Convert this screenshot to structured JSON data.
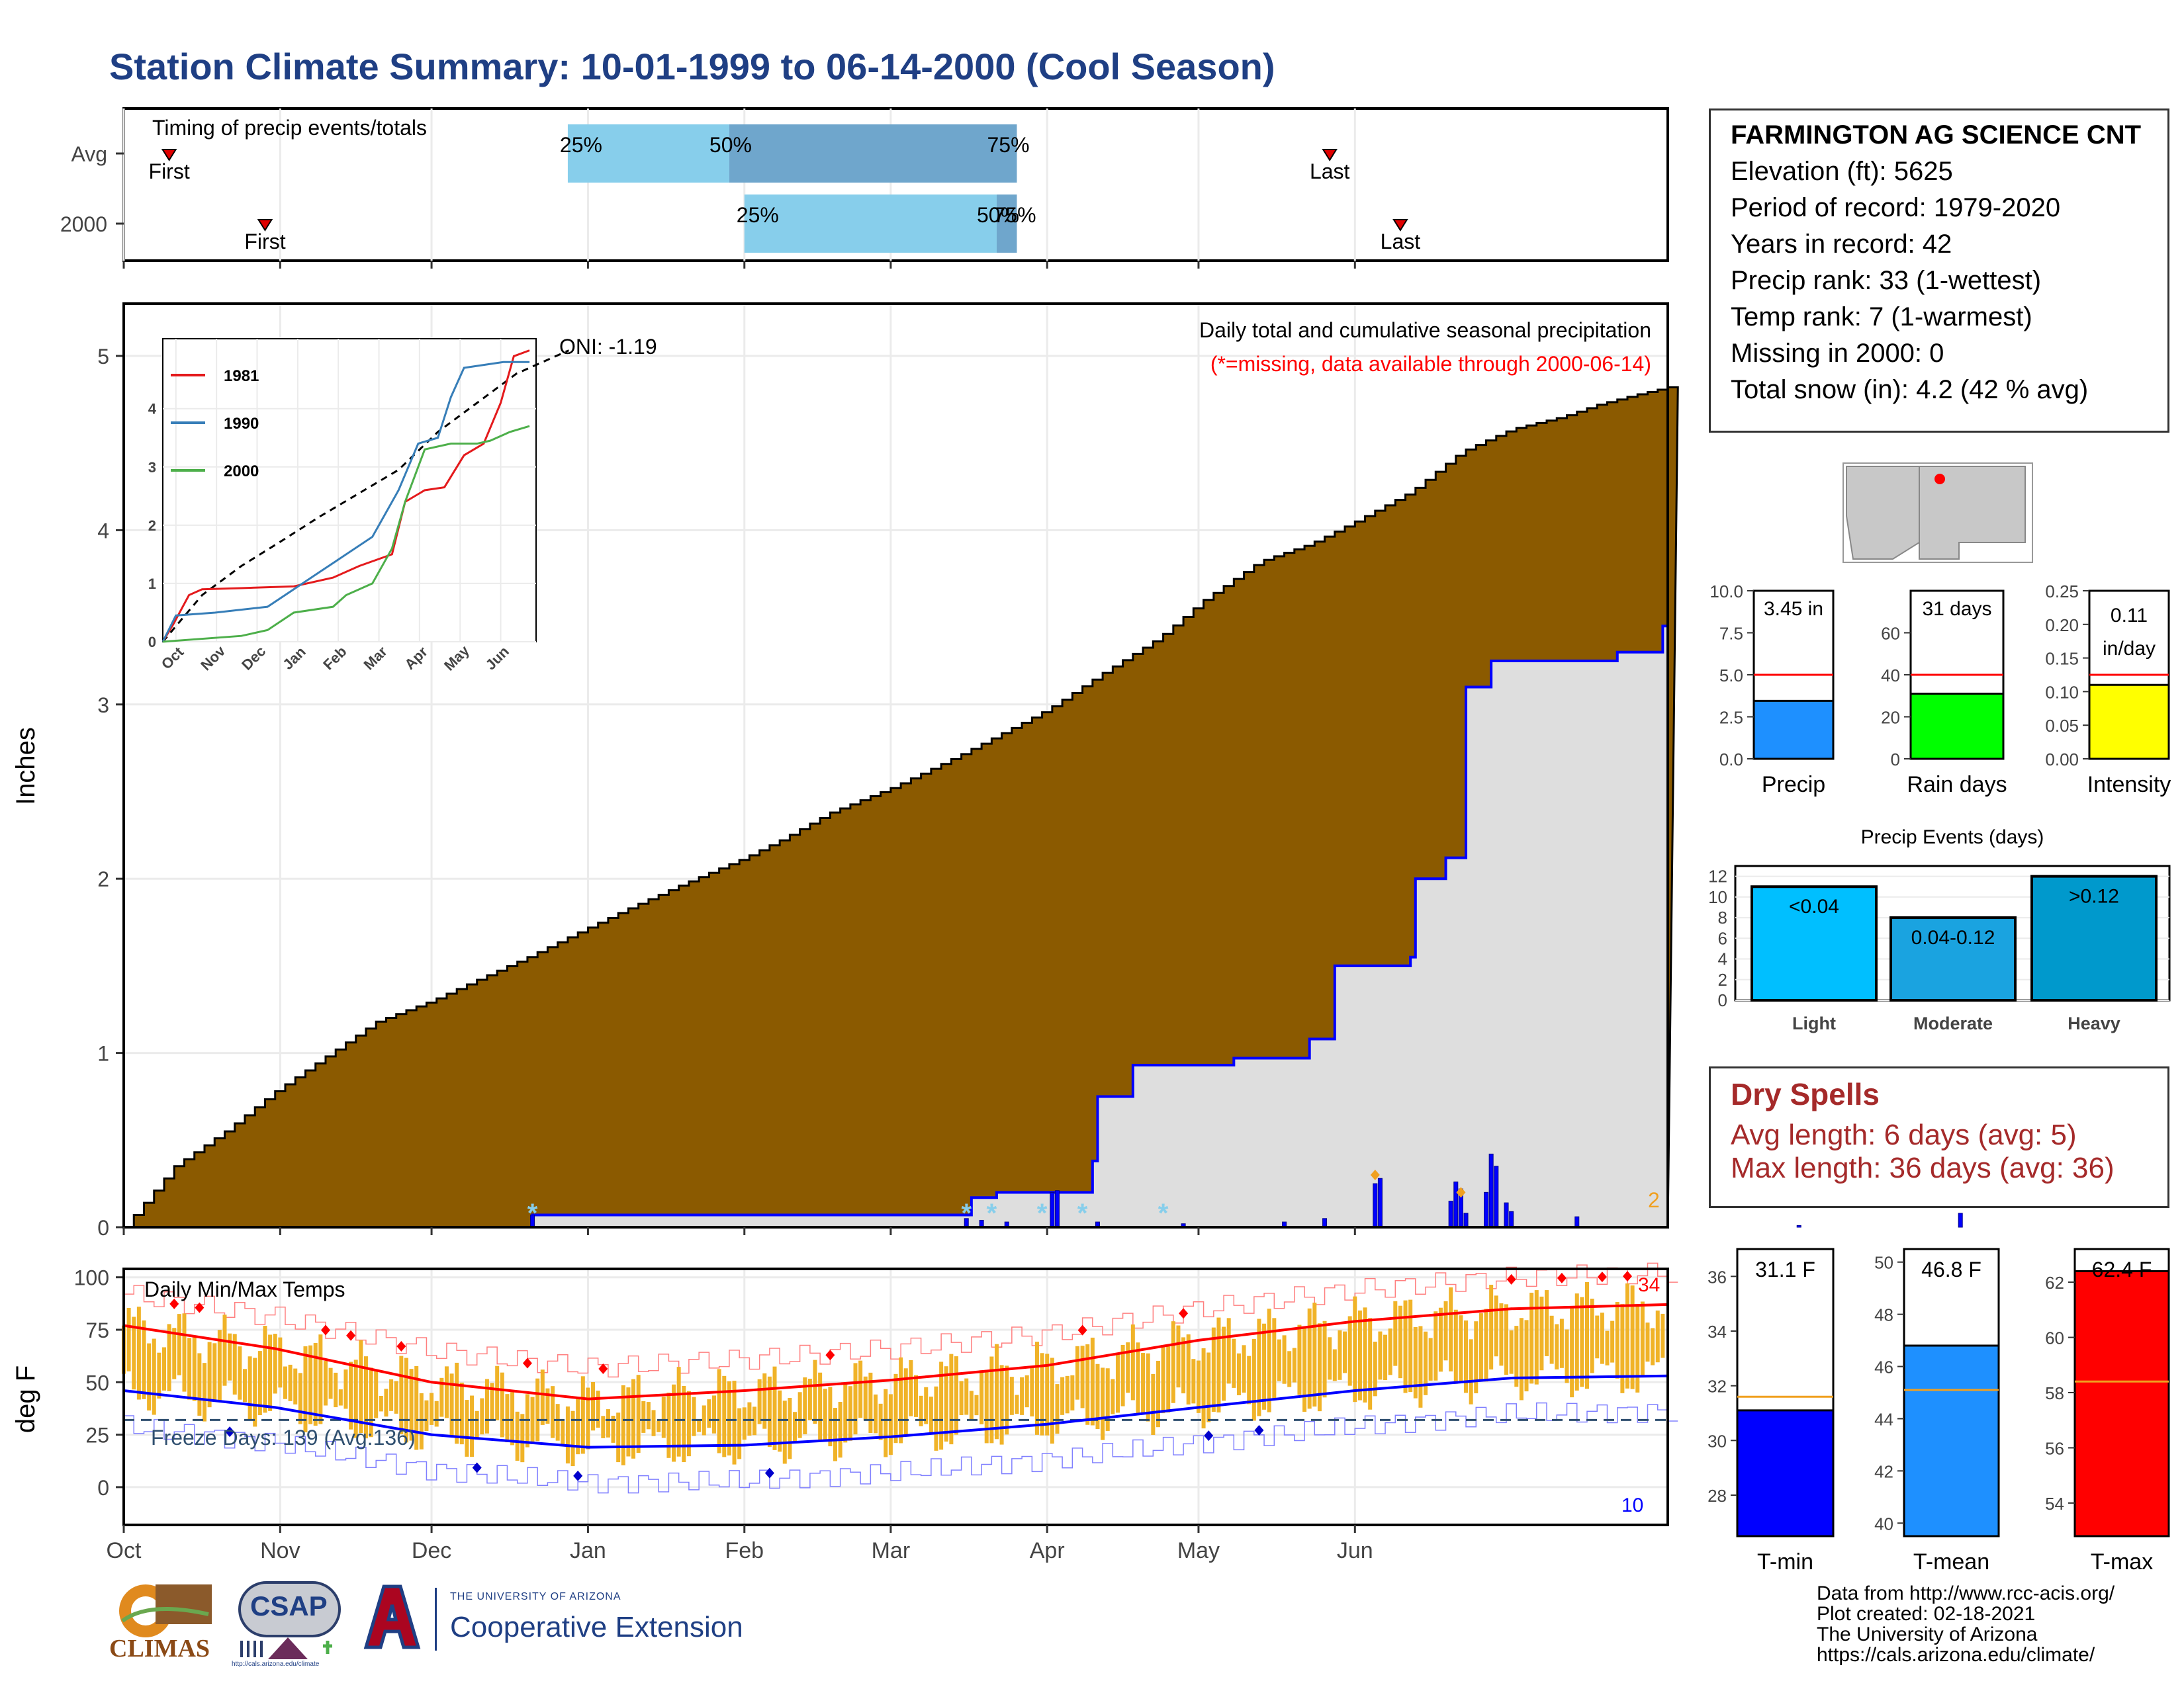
{
  "title": "Station Climate Summary: 10-01-1999 to 06-14-2000 (Cool Season)",
  "colors": {
    "title": "#1f3f84",
    "brown": "#8b5a00",
    "grey": "#dedede",
    "blue": "#0000ff",
    "light_blue": "#87ceeb",
    "mid_blue": "#6fa6cc",
    "orange": "#f0b328",
    "red": "#ff0000"
  },
  "station": {
    "name": "FARMINGTON AG SCIENCE CNT",
    "lines": [
      "Elevation (ft): 5625",
      "Period of record: 1979-2020",
      "Years in record: 42",
      "Precip rank: 33 (1-wettest)",
      "Temp rank: 7 (1-warmest)",
      "Missing in 2000: 0",
      "Total snow (in): 4.2 (42 % avg)"
    ]
  },
  "dry_spells": {
    "title": "Dry Spells",
    "avg_length": "Avg length: 6 days (avg: 5)",
    "max_length": "Max length: 36 days (avg: 36)"
  },
  "footer": {
    "lines": [
      "Data from http://www.rcc-acis.org/",
      "Plot created: 02-18-2021",
      "The University of Arizona",
      "https://cals.arizona.edu/climate/"
    ]
  },
  "logos": {
    "climas": "CLIMAS",
    "csap": "CSAP",
    "csap_url": "http://cals.arizona.edu/climate",
    "ua_small": "THE UNIVERSITY OF ARIZONA",
    "ua_big": "Cooperative Extension"
  },
  "chart_data": [
    {
      "type": "bar",
      "id": "timing",
      "title": "Timing of precip events/totals",
      "rows": [
        {
          "label": "Avg",
          "first": "Oct 10",
          "p25": "Dec 28",
          "p50": "Jan 29",
          "p75": "Mar 26",
          "last": "May 27"
        },
        {
          "label": "2000",
          "first": "Oct 29",
          "p25": "Feb 1",
          "p50": "Mar 22",
          "p75": "Mar 26",
          "last": "Jun 10"
        }
      ],
      "marker_labels": {
        "first": "First",
        "last": "Last",
        "p25": "25%",
        "p50": "50%",
        "p75": "75%"
      }
    },
    {
      "type": "area",
      "id": "precip",
      "title": "Daily total and cumulative seasonal precipitation",
      "subtitle": "(*=missing, data available through 2000-06-14)",
      "oni": "ONI: -1.19",
      "ylabel": "Inches",
      "ylim": [
        0,
        5.3
      ],
      "yticks": [
        0,
        1,
        2,
        3,
        4,
        5
      ],
      "x_months": [
        "Oct",
        "Nov",
        "Dec",
        "Jan",
        "Feb",
        "Mar",
        "Apr",
        "May",
        "Jun"
      ],
      "avg_cumulative": [
        [
          0,
          0
        ],
        [
          10,
          0.35
        ],
        [
          20,
          0.55
        ],
        [
          30,
          0.78
        ],
        [
          40,
          0.98
        ],
        [
          50,
          1.18
        ],
        [
          61,
          1.3
        ],
        [
          70,
          1.42
        ],
        [
          80,
          1.55
        ],
        [
          92,
          1.72
        ],
        [
          100,
          1.83
        ],
        [
          110,
          1.96
        ],
        [
          123,
          2.12
        ],
        [
          130,
          2.22
        ],
        [
          140,
          2.38
        ],
        [
          152,
          2.52
        ],
        [
          165,
          2.7
        ],
        [
          175,
          2.85
        ],
        [
          183,
          2.97
        ],
        [
          195,
          3.2
        ],
        [
          205,
          3.38
        ],
        [
          214,
          3.6
        ],
        [
          225,
          3.82
        ],
        [
          235,
          3.92
        ],
        [
          244,
          4.05
        ],
        [
          255,
          4.22
        ],
        [
          265,
          4.45
        ],
        [
          275,
          4.58
        ],
        [
          285,
          4.65
        ],
        [
          292,
          4.72
        ],
        [
          300,
          4.78
        ],
        [
          306,
          4.82
        ]
      ],
      "season_cumulative": [
        [
          0,
          0
        ],
        [
          80,
          0.0
        ],
        [
          81,
          0.07
        ],
        [
          167,
          0.07
        ],
        [
          168,
          0.17
        ],
        [
          173,
          0.2
        ],
        [
          192,
          0.38
        ],
        [
          193,
          0.75
        ],
        [
          200,
          0.93
        ],
        [
          220,
          0.97
        ],
        [
          235,
          1.08
        ],
        [
          240,
          1.5
        ],
        [
          255,
          1.55
        ],
        [
          256,
          2.0
        ],
        [
          262,
          2.12
        ],
        [
          266,
          3.1
        ],
        [
          271,
          3.25
        ],
        [
          296,
          3.3
        ],
        [
          305,
          3.45
        ],
        [
          306,
          3.45
        ]
      ],
      "daily_bars": [
        [
          81,
          0.07
        ],
        [
          167,
          0.05
        ],
        [
          170,
          0.04
        ],
        [
          175,
          0.03
        ],
        [
          184,
          0.2
        ],
        [
          185,
          0.21
        ],
        [
          193,
          0.03
        ],
        [
          210,
          0.02
        ],
        [
          230,
          0.03
        ],
        [
          238,
          0.05
        ],
        [
          248,
          0.25
        ],
        [
          249,
          0.28
        ],
        [
          263,
          0.15
        ],
        [
          264,
          0.26
        ],
        [
          265,
          0.22
        ],
        [
          266,
          0.08
        ],
        [
          270,
          0.2
        ],
        [
          271,
          0.42
        ],
        [
          272,
          0.35
        ],
        [
          274,
          0.14
        ],
        [
          275,
          0.09
        ],
        [
          288,
          0.06
        ],
        [
          332,
          0.01
        ],
        [
          364,
          0.08
        ]
      ],
      "snow_markers": [
        81,
        167,
        172,
        182,
        190,
        206
      ],
      "corner_label": "2",
      "inset": {
        "xlabels": [
          "Oct",
          "Nov",
          "Dec",
          "Jan",
          "Feb",
          "Mar",
          "Apr",
          "May",
          "Jun"
        ],
        "yticks": [
          0,
          1,
          2,
          3,
          4
        ],
        "series": [
          {
            "name": "1981",
            "color": "#e41a1c",
            "points": [
              [
                0,
                0
              ],
              [
                8,
                0.3
              ],
              [
                20,
                0.8
              ],
              [
                30,
                0.9
              ],
              [
                60,
                0.92
              ],
              [
                100,
                0.95
              ],
              [
                130,
                1.1
              ],
              [
                150,
                1.3
              ],
              [
                175,
                1.5
              ],
              [
                185,
                2.4
              ],
              [
                200,
                2.6
              ],
              [
                215,
                2.65
              ],
              [
                230,
                3.2
              ],
              [
                245,
                3.4
              ],
              [
                258,
                4.1
              ],
              [
                268,
                4.9
              ],
              [
                280,
                5.0
              ]
            ]
          },
          {
            "name": "1990",
            "color": "#377eb8",
            "points": [
              [
                0,
                0
              ],
              [
                10,
                0.45
              ],
              [
                40,
                0.5
              ],
              [
                80,
                0.6
              ],
              [
                100,
                0.9
              ],
              [
                120,
                1.2
              ],
              [
                140,
                1.5
              ],
              [
                160,
                1.8
              ],
              [
                170,
                2.2
              ],
              [
                180,
                2.6
              ],
              [
                195,
                3.4
              ],
              [
                210,
                3.5
              ],
              [
                220,
                4.2
              ],
              [
                230,
                4.7
              ],
              [
                245,
                4.75
              ],
              [
                260,
                4.8
              ],
              [
                280,
                4.8
              ]
            ]
          },
          {
            "name": "2000",
            "color": "#4daf4a",
            "points": [
              [
                0,
                0
              ],
              [
                60,
                0.1
              ],
              [
                80,
                0.2
              ],
              [
                100,
                0.5
              ],
              [
                130,
                0.6
              ],
              [
                140,
                0.8
              ],
              [
                160,
                1.0
              ],
              [
                175,
                1.6
              ],
              [
                185,
                2.4
              ],
              [
                200,
                3.3
              ],
              [
                220,
                3.4
              ],
              [
                240,
                3.4
              ],
              [
                250,
                3.45
              ],
              [
                265,
                3.6
              ],
              [
                280,
                3.7
              ]
            ]
          }
        ],
        "avg_dashed": [
          [
            0,
            0
          ],
          [
            30,
            0.8
          ],
          [
            60,
            1.3
          ],
          [
            90,
            1.72
          ],
          [
            120,
            2.15
          ],
          [
            150,
            2.55
          ],
          [
            180,
            2.95
          ],
          [
            210,
            3.6
          ],
          [
            240,
            4.1
          ],
          [
            270,
            4.6
          ],
          [
            300,
            4.9
          ],
          [
            310,
            5.0
          ]
        ]
      }
    },
    {
      "type": "bar",
      "id": "temps",
      "title": "Daily Min/Max Temps",
      "ylabel": "deg F",
      "ylim": [
        -18,
        104
      ],
      "yticks": [
        0,
        25,
        50,
        75,
        100
      ],
      "freeze_label": "Freeze Days: 139 (Avg:136)",
      "freeze_line": 32,
      "x_months": [
        "Oct",
        "Nov",
        "Dec",
        "Jan",
        "Feb",
        "Mar",
        "Apr",
        "May",
        "Jun"
      ],
      "avg_max": [
        [
          0,
          77
        ],
        [
          30,
          66
        ],
        [
          61,
          50
        ],
        [
          92,
          42
        ],
        [
          123,
          46
        ],
        [
          152,
          51
        ],
        [
          183,
          58
        ],
        [
          213,
          70
        ],
        [
          244,
          79
        ],
        [
          275,
          85
        ],
        [
          306,
          87
        ]
      ],
      "avg_min": [
        [
          0,
          46
        ],
        [
          30,
          38
        ],
        [
          61,
          25
        ],
        [
          92,
          19
        ],
        [
          123,
          20
        ],
        [
          152,
          24
        ],
        [
          183,
          30
        ],
        [
          213,
          38
        ],
        [
          244,
          46
        ],
        [
          275,
          52
        ],
        [
          306,
          53
        ]
      ],
      "record_max_label": "34",
      "record_min_label": "10"
    },
    {
      "type": "bar",
      "id": "precip_summary",
      "panels": [
        {
          "label": "Precip",
          "value_label": "3.45 in",
          "value": 3.45,
          "avg": 5.0,
          "ylim": [
            0,
            10
          ],
          "yticks": [
            "0.0",
            "2.5",
            "5.0",
            "7.5",
            "10.0"
          ],
          "color": "#1e90ff"
        },
        {
          "label": "Rain days",
          "value_label": "31 days",
          "value": 31,
          "avg": 40,
          "ylim": [
            0,
            80
          ],
          "yticks": [
            "0",
            "20",
            "40",
            "60"
          ],
          "color": "#00ff00"
        },
        {
          "label": "Intensity",
          "value_label": "0.11 in/day",
          "value": 0.11,
          "avg": 0.125,
          "ylim": [
            0,
            0.25
          ],
          "yticks": [
            "0.00",
            "0.05",
            "0.10",
            "0.15",
            "0.20",
            "0.25"
          ],
          "color": "#ffff00"
        }
      ]
    },
    {
      "type": "bar",
      "id": "events",
      "title": "Precip Events (days)",
      "categories": [
        "Light",
        "Moderate",
        "Heavy"
      ],
      "bar_labels": [
        "<0.04",
        "0.04-0.12",
        ">0.12"
      ],
      "values": [
        11,
        8,
        12
      ],
      "ylim": [
        0,
        13
      ],
      "yticks": [
        0,
        2,
        4,
        6,
        8,
        10,
        12
      ],
      "colors": [
        "#00bfff",
        "#1aa3e0",
        "#0099cc"
      ]
    },
    {
      "type": "bar",
      "id": "temp_summary",
      "panels": [
        {
          "label": "T-min",
          "value_label": "31.1 F",
          "value": 31.1,
          "avg": 31.6,
          "ylim": [
            26.5,
            37
          ],
          "yticks": [
            28,
            30,
            32,
            34,
            36
          ],
          "color": "#0000ff"
        },
        {
          "label": "T-mean",
          "value_label": "46.8 F",
          "value": 46.8,
          "avg": 45.1,
          "ylim": [
            39.5,
            50.5
          ],
          "yticks": [
            40,
            42,
            44,
            46,
            48,
            50
          ],
          "color": "#1e90ff"
        },
        {
          "label": "T-max",
          "value_label": "62.4 F",
          "value": 62.4,
          "avg": 58.4,
          "ylim": [
            52.8,
            63.2
          ],
          "yticks": [
            54,
            56,
            58,
            60,
            62
          ],
          "color": "#ff0000"
        }
      ]
    }
  ]
}
